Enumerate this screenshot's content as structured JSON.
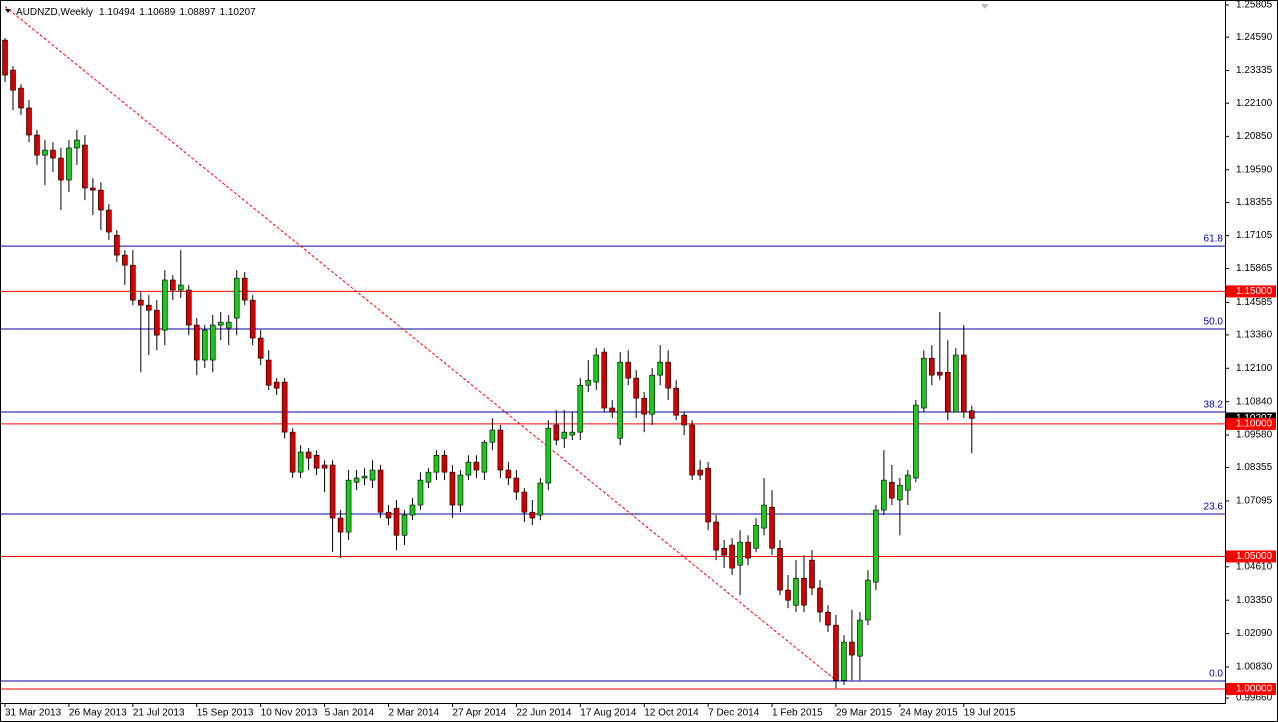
{
  "chart_data": {
    "type": "candlestick",
    "symbol": "AUDNZD,Weekly",
    "categories": [
      "31 Mar 2013",
      null,
      null,
      null,
      null,
      null,
      null,
      null,
      "26 May 2013",
      null,
      null,
      null,
      null,
      null,
      null,
      null,
      "21 Jul 2013",
      null,
      null,
      null,
      null,
      null,
      null,
      null,
      "15 Sep 2013",
      null,
      null,
      null,
      null,
      null,
      null,
      null,
      "10 Nov 2013",
      null,
      null,
      null,
      null,
      null,
      null,
      null,
      "5 Jan 2014",
      null,
      null,
      null,
      null,
      null,
      null,
      null,
      "2 Mar 2014",
      null,
      null,
      null,
      null,
      null,
      null,
      null,
      "27 Apr 2014",
      null,
      null,
      null,
      null,
      null,
      null,
      null,
      "22 Jun 2014",
      null,
      null,
      null,
      null,
      null,
      null,
      null,
      "17 Aug 2014",
      null,
      null,
      null,
      null,
      null,
      null,
      null,
      "12 Oct 2014",
      null,
      null,
      null,
      null,
      null,
      null,
      null,
      "7 Dec 2014",
      null,
      null,
      null,
      null,
      null,
      null,
      null,
      "1 Feb 2015",
      null,
      null,
      null,
      null,
      null,
      null,
      null,
      "29 Mar 2015",
      null,
      null,
      null,
      null,
      null,
      null,
      null,
      "24 May 2015",
      null,
      null,
      null,
      null,
      null,
      null,
      null,
      "19 Jul 2015",
      null
    ],
    "open": [
      1.2448,
      1.2335,
      1.2267,
      1.2192,
      1.209,
      1.2014,
      1.2033,
      1.2003,
      1.192,
      1.2041,
      1.2052,
      1.189,
      1.1882,
      1.1807,
      1.1712,
      1.1637,
      1.1599,
      1.1467,
      1.1448,
      1.1429,
      1.1354,
      1.1543,
      1.1505,
      1.1505,
      1.1373,
      1.1241,
      1.1241,
      1.1373,
      1.1362,
      1.1399,
      1.155,
      1.1467,
      1.1324,
      1.1241,
      1.1158,
      1.1158,
      1.0969,
      1.0818,
      1.0894,
      1.0882,
      1.0845,
      1.0845,
      1.0645,
      1.0592,
      1.078,
      1.0796,
      1.0788,
      1.0826,
      1.0667,
      1.0682,
      1.058,
      1.0656,
      1.0694,
      1.078,
      1.0818,
      1.0882,
      1.0818,
      1.0694,
      1.0807,
      1.0856,
      1.0818,
      1.0931,
      1.0977,
      1.0826,
      1.0796,
      1.0743,
      1.0667,
      1.0656,
      1.0777,
      1.0996,
      1.0946,
      1.0958,
      1.0969,
      1.1146,
      1.1158,
      1.1271,
      1.106,
      1.0946,
      1.1233,
      1.1173,
      1.1097,
      1.1037,
      1.1184,
      1.1233,
      1.1135,
      1.1033,
      1.0996,
      1.0826,
      1.0833,
      1.063,
      1.0531,
      1.0543,
      1.0467,
      1.0554,
      1.0531,
      1.0607,
      1.0686,
      1.0531,
      1.0373,
      1.0316,
      1.0418,
      1.0486,
      1.0381,
      1.029,
      1.0241,
      1.0033,
      1.0177,
      1.0124,
      1.026,
      1.0403,
      1.0675,
      1.078,
      1.0713,
      1.075,
      1.0796,
      1.106,
      1.1248,
      1.1195,
      1.1195,
      1.1045,
      1.126,
      1.10494
    ],
    "high": [
      1.2456,
      1.235,
      1.2282,
      1.2222,
      1.2109,
      1.2071,
      1.2063,
      1.2041,
      1.2071,
      1.2109,
      1.209,
      1.1927,
      1.1912,
      1.1829,
      1.1731,
      1.1656,
      1.1656,
      1.1497,
      1.1486,
      1.1467,
      1.158,
      1.1561,
      1.1656,
      1.1524,
      1.1399,
      1.1373,
      1.1411,
      1.1422,
      1.1411,
      1.158,
      1.1573,
      1.1486,
      1.1354,
      1.1278,
      1.1173,
      1.1173,
      1.0984,
      1.092,
      1.0909,
      1.0901,
      1.0863,
      1.0863,
      1.0675,
      1.0826,
      1.0826,
      1.0833,
      1.0863,
      1.0845,
      1.0694,
      1.0713,
      1.0675,
      1.072,
      1.0818,
      1.0833,
      1.0901,
      1.0901,
      1.0845,
      1.0826,
      1.0882,
      1.0882,
      1.0939,
      1.1022,
      1.0996,
      1.0856,
      1.0826,
      1.0758,
      1.0713,
      1.0796,
      1.1014,
      1.1052,
      1.1052,
      1.1045,
      1.1173,
      1.1241,
      1.1286,
      1.1286,
      1.109,
      1.1271,
      1.1278,
      1.1203,
      1.112,
      1.1211,
      1.1297,
      1.1278,
      1.1165,
      1.1045,
      1.1014,
      1.0863,
      1.0856,
      1.0656,
      1.0562,
      1.0569,
      1.0599,
      1.058,
      1.0645,
      1.0796,
      1.075,
      1.0562,
      1.043,
      1.0486,
      1.0505,
      1.0524,
      1.0411,
      1.0316,
      1.0279,
      1.0203,
      1.0298,
      1.029,
      1.0448,
      1.0694,
      1.0901,
      1.0845,
      1.0796,
      1.0826,
      1.109,
      1.1278,
      1.1297,
      1.1422,
      1.1316,
      1.1286,
      1.1373,
      1.10689
    ],
    "low": [
      1.229,
      1.2184,
      1.2165,
      1.2063,
      1.1977,
      1.1901,
      1.195,
      1.1807,
      1.1875,
      1.1977,
      1.1844,
      1.1788,
      1.1731,
      1.1694,
      1.1611,
      1.1524,
      1.1448,
      1.1195,
      1.126,
      1.1278,
      1.1297,
      1.1467,
      1.1475,
      1.1335,
      1.1184,
      1.1211,
      1.1195,
      1.1316,
      1.1297,
      1.1335,
      1.1448,
      1.1297,
      1.1222,
      1.1128,
      1.1109,
      1.0946,
      1.0796,
      1.0796,
      1.0826,
      1.0807,
      1.0743,
      1.0516,
      1.0494,
      1.0562,
      1.075,
      1.0769,
      1.0758,
      1.0645,
      1.0618,
      1.0524,
      1.0543,
      1.0637,
      1.0675,
      1.0758,
      1.0788,
      1.0788,
      1.0645,
      1.0667,
      1.0788,
      1.0796,
      1.0788,
      1.0901,
      1.0796,
      1.0769,
      1.0713,
      1.063,
      1.0618,
      1.0637,
      1.075,
      1.092,
      1.0909,
      1.0939,
      1.0939,
      1.112,
      1.1128,
      1.1045,
      1.1022,
      1.092,
      1.1146,
      1.1022,
      1.0969,
      1.0996,
      1.1146,
      1.109,
      1.1014,
      1.0958,
      1.0788,
      1.0788,
      1.0599,
      1.0486,
      1.0456,
      1.043,
      1.0354,
      1.0467,
      1.0516,
      1.058,
      1.0505,
      1.0354,
      1.0305,
      1.029,
      1.029,
      1.0354,
      1.0252,
      1.0215,
      1.0003,
      1.0015,
      1.0033,
      1.0033,
      1.0241,
      1.0373,
      1.0656,
      1.0694,
      1.058,
      1.0694,
      1.078,
      1.1045,
      1.1146,
      1.1165,
      1.1014,
      1.1045,
      1.1022,
      1.08897
    ],
    "close": [
      1.2316,
      1.2259,
      1.2192,
      1.209,
      1.2014,
      1.2033,
      1.2003,
      1.192,
      1.2041,
      1.2071,
      1.189,
      1.1882,
      1.1807,
      1.1724,
      1.1637,
      1.1599,
      1.1467,
      1.1448,
      1.1429,
      1.1335,
      1.1543,
      1.1505,
      1.1524,
      1.1373,
      1.1241,
      1.1354,
      1.1373,
      1.1384,
      1.1384,
      1.155,
      1.1467,
      1.1324,
      1.1248,
      1.1146,
      1.1135,
      1.0969,
      1.0818,
      1.0894,
      1.0871,
      1.0833,
      1.0833,
      1.0645,
      1.0592,
      1.0788,
      1.0796,
      1.0803,
      1.0826,
      1.0667,
      1.0645,
      1.058,
      1.0656,
      1.0694,
      1.0788,
      1.0818,
      1.0882,
      1.0818,
      1.0694,
      1.0807,
      1.0856,
      1.0826,
      1.0931,
      1.0977,
      1.0826,
      1.0796,
      1.0743,
      1.0667,
      1.0645,
      1.0777,
      1.0984,
      1.0939,
      1.0969,
      1.0969,
      1.1146,
      1.1165,
      1.126,
      1.106,
      1.1045,
      1.1233,
      1.1173,
      1.1097,
      1.1037,
      1.1184,
      1.1233,
      1.1135,
      1.1033,
      1.0996,
      1.0807,
      1.0807,
      1.063,
      1.0524,
      1.0505,
      1.0456,
      1.0554,
      1.0494,
      1.0618,
      1.0694,
      1.0531,
      1.0373,
      1.0335,
      1.0418,
      1.0316,
      1.0381,
      1.029,
      1.0241,
      1.0033,
      1.0177,
      1.0128,
      1.026,
      1.0411,
      1.0675,
      1.0788,
      1.072,
      1.0769,
      1.0807,
      1.1071,
      1.1248,
      1.1184,
      1.1184,
      1.1045,
      1.126,
      1.1045,
      1.10207
    ],
    "up_color": "#1fc41f",
    "down_color": "#d40000",
    "ylim": [
      0.9966,
      1.25805
    ],
    "yticks": [
      1.25805,
      {
        "value": 1.2459,
        "label": "1.24590"
      },
      1.23335,
      {
        "value": 1.221,
        "label": "1.22100"
      },
      {
        "value": 1.2085,
        "label": "1.20850"
      },
      {
        "value": 1.1959,
        "label": "1.19590"
      },
      1.18355,
      1.17105,
      1.15865,
      1.14585,
      {
        "value": 1.1336,
        "label": "1.13360"
      },
      {
        "value": 1.121,
        "label": "1.12100"
      },
      {
        "value": 1.1084,
        "label": "1.10840"
      },
      {
        "value": 1.0958,
        "label": "1.09580"
      },
      1.08355,
      1.07095,
      {
        "value": 1.0461,
        "label": "1.04610"
      },
      {
        "value": 1.0335,
        "label": "1.03350"
      },
      {
        "value": 1.0209,
        "label": "1.02090"
      },
      {
        "value": 1.0083,
        "label": "1.00830"
      },
      {
        "value": 0.9966,
        "label": "0.99660"
      }
    ],
    "levels": [
      {
        "value": 1.15,
        "label": "1.15000"
      },
      {
        "value": 1.1,
        "label": "1.10000"
      },
      {
        "value": 1.05,
        "label": "1.05000"
      },
      {
        "value": 1.0,
        "label": "1.00000"
      }
    ],
    "level_color": "#ff0000",
    "fib_levels": [
      {
        "value": 1.1671,
        "label": "61.8"
      },
      {
        "value": 1.1358,
        "label": "50.0"
      },
      {
        "value": 1.1045,
        "label": "38.2"
      },
      {
        "value": 1.066,
        "label": "23.6"
      },
      {
        "value": 1.003,
        "label": "0.0"
      }
    ],
    "fib_color": "#0000aa",
    "trendline": {
      "x": [
        0,
        104
      ],
      "y": [
        1.2575,
        1.0033
      ],
      "color": "#ff0000"
    }
  }
}
